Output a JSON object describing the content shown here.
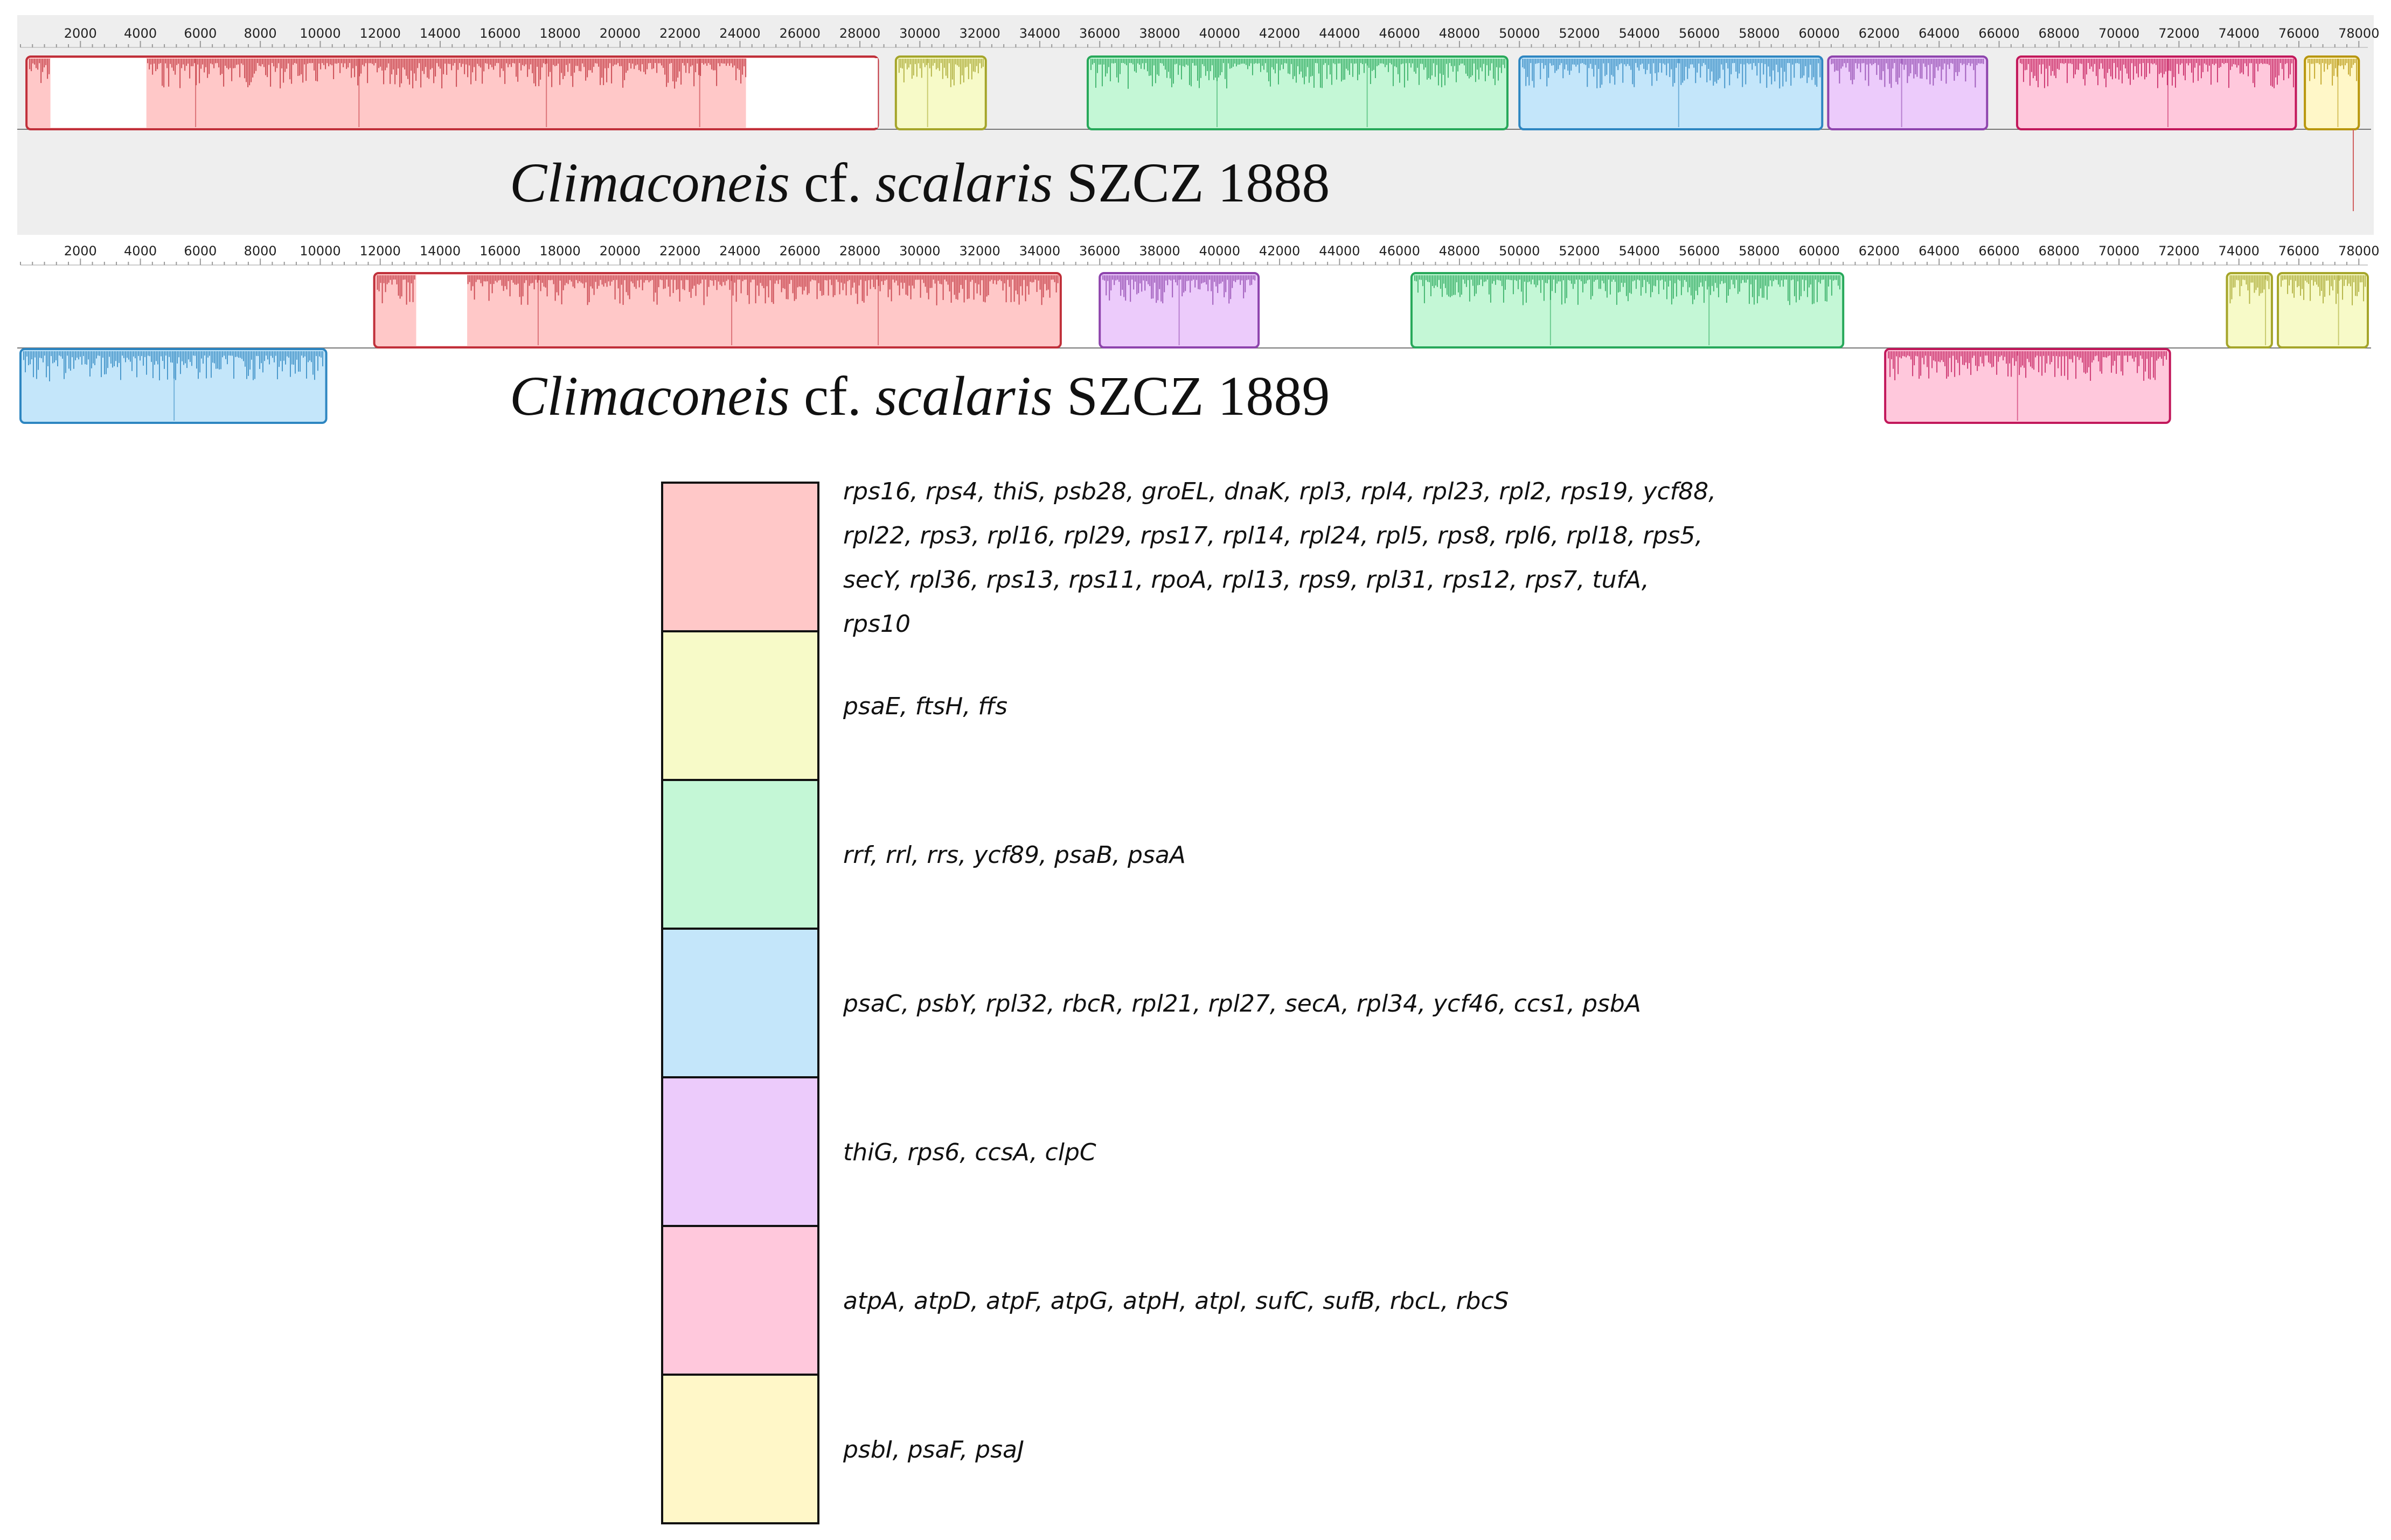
{
  "colors": {
    "panel_background": "#eeeeee",
    "axis": "#777777",
    "lcb_palette": {
      "red": {
        "fill": "#ffc8c8",
        "stroke": "#c0303a"
      },
      "yellow": {
        "fill": "#f7fac8",
        "stroke": "#a5a52a"
      },
      "green": {
        "fill": "#c4f7d6",
        "stroke": "#27a85a"
      },
      "blue": {
        "fill": "#c4e6fa",
        "stroke": "#2e86c1"
      },
      "purple": {
        "fill": "#eccbfb",
        "stroke": "#8e44ad"
      },
      "pink": {
        "fill": "#ffc8dc",
        "stroke": "#c2185b"
      },
      "cream": {
        "fill": "#fff7c8",
        "stroke": "#b8960c"
      }
    }
  },
  "axis": {
    "genome_length_bp": 78300,
    "tick_step_bp": 2000,
    "tick_first_bp": 2000
  },
  "genomes": [
    {
      "name_genus": "Climaconeis",
      "name_mid": " cf. ",
      "name_species": "scalaris",
      "name_strain": " SZCZ 1888",
      "background": true,
      "blocks": [
        {
          "color": "red",
          "row": "forward",
          "start": 200,
          "end": 28600,
          "gaps": [
            [
              1000,
              4200
            ],
            [
              24200,
              28600
            ]
          ]
        },
        {
          "color": "yellow",
          "row": "forward",
          "start": 29200,
          "end": 32200,
          "gaps": []
        },
        {
          "color": "green",
          "row": "forward",
          "start": 35600,
          "end": 49600,
          "gaps": []
        },
        {
          "color": "blue",
          "row": "forward",
          "start": 50000,
          "end": 60100,
          "gaps": []
        },
        {
          "color": "purple",
          "row": "forward",
          "start": 60300,
          "end": 65600,
          "gaps": []
        },
        {
          "color": "pink",
          "row": "forward",
          "start": 66600,
          "end": 75900,
          "gaps": []
        },
        {
          "color": "cream",
          "row": "forward",
          "start": 76200,
          "end": 78000,
          "gaps": []
        }
      ]
    },
    {
      "name_genus": "Climaconeis",
      "name_mid": " cf. ",
      "name_species": "scalaris",
      "name_strain": " SZCZ 1889",
      "background": false,
      "blocks": [
        {
          "color": "red",
          "row": "forward",
          "start": 11800,
          "end": 34700,
          "gaps": [
            [
              13200,
              14900
            ]
          ]
        },
        {
          "color": "purple",
          "row": "forward",
          "start": 36000,
          "end": 41300,
          "gaps": []
        },
        {
          "color": "green",
          "row": "forward",
          "start": 46400,
          "end": 60800,
          "gaps": []
        },
        {
          "color": "yellow",
          "row": "forward",
          "start": 73600,
          "end": 75100,
          "gaps": []
        },
        {
          "color": "yellow",
          "row": "forward",
          "start": 75300,
          "end": 78300,
          "gaps": []
        },
        {
          "color": "blue",
          "row": "reverse",
          "start": 0,
          "end": 10200,
          "gaps": []
        },
        {
          "color": "pink",
          "row": "reverse",
          "start": 62200,
          "end": 71700,
          "gaps": []
        }
      ]
    }
  ],
  "legend": [
    {
      "color": "#ffc8c8",
      "lines": [
        "rps16, rps4, thiS, psb28, groEL, dnaK, rpl3, rpl4, rpl23, rpl2, rps19, ycf88,",
        "rpl22, rps3, rpl16, rpl29, rps17, rpl14, rpl24, rpl5, rps8, rpl6, rpl18, rps5,",
        "secY, rpl36, rps13, rps11, rpoA, rpl13, rps9, rpl31, rps12, rps7, tufA,",
        "rps10"
      ]
    },
    {
      "color": "#f7fac8",
      "lines": [
        "psaE, ftsH, ffs"
      ]
    },
    {
      "color": "#c4f7d6",
      "lines": [
        "rrf, rrl, rrs, ycf89, psaB, psaA"
      ]
    },
    {
      "color": "#c4e6fa",
      "lines": [
        "psaC, psbY, rpl32, rbcR, rpl21, rpl27, secA, rpl34, ycf46, ccs1, psbA"
      ]
    },
    {
      "color": "#eccbfb",
      "lines": [
        "thiG, rps6, ccsA, clpC"
      ]
    },
    {
      "color": "#ffc8dc",
      "lines": [
        "atpA, atpD, atpF, atpG, atpH, atpI, sufC, sufB, rbcL, rbcS"
      ]
    },
    {
      "color": "#fff7c8",
      "lines": [
        "psbI, psaF, psaJ"
      ]
    }
  ]
}
